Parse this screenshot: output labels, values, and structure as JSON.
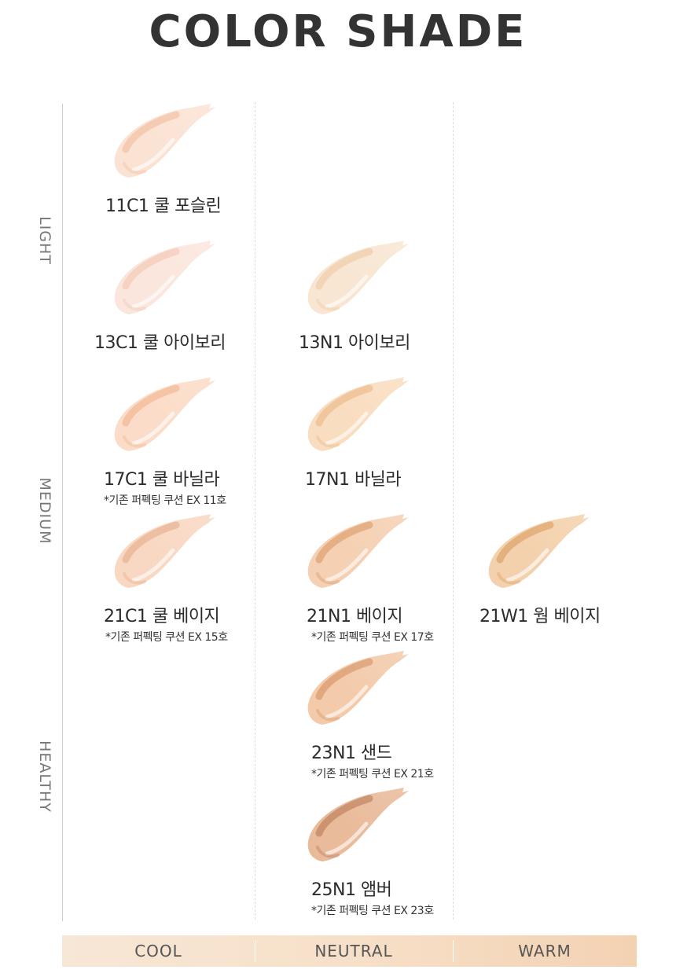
{
  "title": "COLOR SHADE",
  "rows": [
    "LIGHT",
    "MEDIUM",
    "HEALTHY"
  ],
  "tones": [
    "COOL",
    "NEUTRAL",
    "WARM"
  ],
  "shades": [
    {
      "id": "11c1",
      "name": "11C1 쿨 포슬린",
      "note": "",
      "color": "#fbe3d4",
      "shadow": "#f1b897"
    },
    {
      "id": "13c1",
      "name": "13C1 쿨 아이보리",
      "note": "",
      "color": "#fbe6dd",
      "shadow": "#f2c1ad"
    },
    {
      "id": "13n1",
      "name": "13N1 아이보리",
      "note": "",
      "color": "#f8e6d3",
      "shadow": "#ecc49f"
    },
    {
      "id": "17c1",
      "name": "17C1 쿨 바닐라",
      "note": "*기존 퍼펙팅 쿠션 EX 11호",
      "color": "#fbdcc8",
      "shadow": "#f0ae86"
    },
    {
      "id": "17n1",
      "name": "17N1 바닐라",
      "note": "",
      "color": "#f9ddc0",
      "shadow": "#e9b27d"
    },
    {
      "id": "21c1",
      "name": "21C1 쿨 베이지",
      "note": "*기존 퍼펙팅 쿠션 EX 15호",
      "color": "#f8d8c3",
      "shadow": "#e3a884"
    },
    {
      "id": "21n1",
      "name": "21N1 베이지",
      "note": "*기존 퍼펙팅 쿠션 EX 17호",
      "color": "#f5d0b3",
      "shadow": "#d7935f"
    },
    {
      "id": "21w1",
      "name": "21W1 웜 베이지",
      "note": "",
      "color": "#f4d1ad",
      "shadow": "#d69858"
    },
    {
      "id": "23n1",
      "name": "23N1 샌드",
      "note": "*기존 퍼펙팅 쿠션 EX 21호",
      "color": "#f3cbaa",
      "shadow": "#d18d5c"
    },
    {
      "id": "25n1",
      "name": "25N1 앰버",
      "note": "*기존 퍼펙팅 쿠션 EX 23호",
      "color": "#e9bb9b",
      "shadow": "#b4734f"
    }
  ]
}
